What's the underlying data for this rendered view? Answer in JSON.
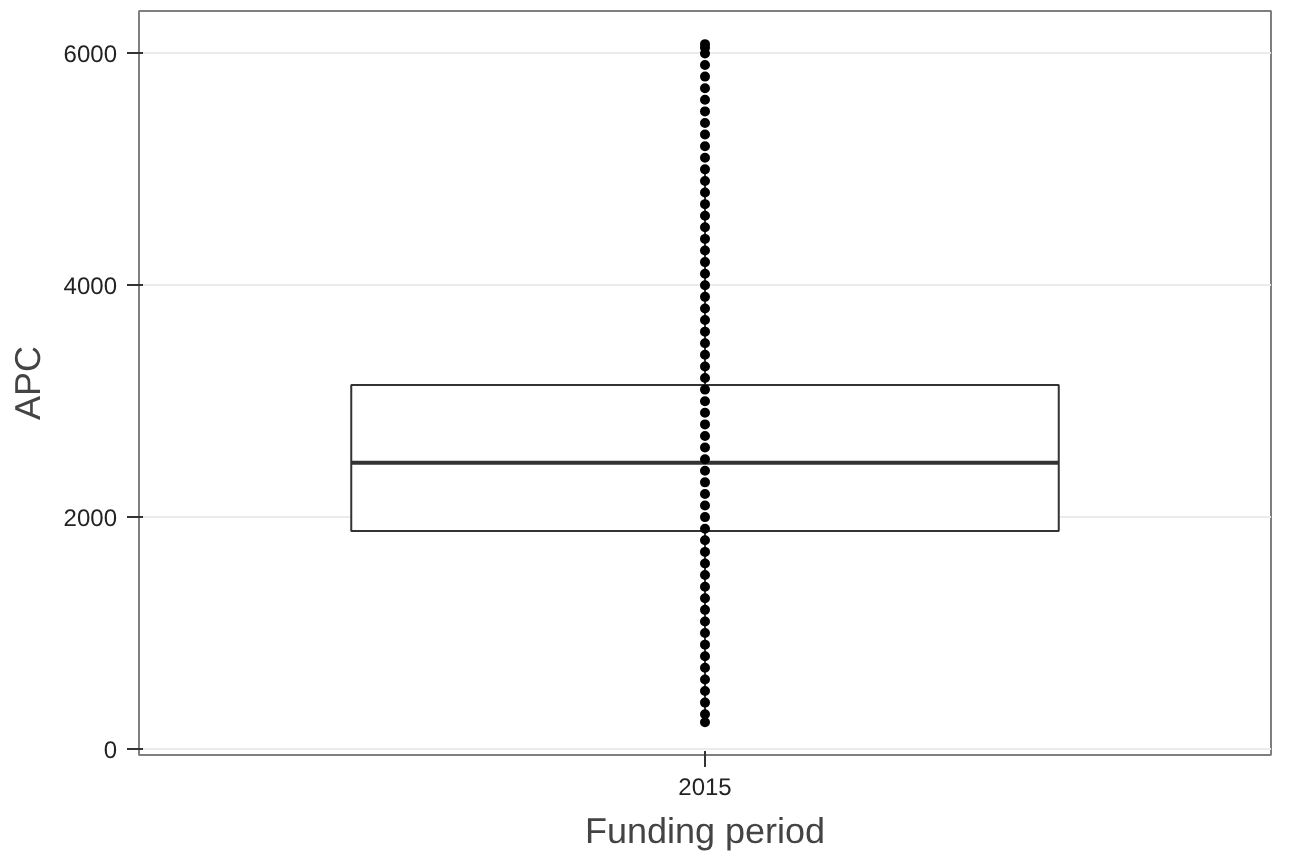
{
  "chart_data": {
    "type": "box",
    "xlabel": "Funding period",
    "ylabel": "APC",
    "categories": [
      "2015"
    ],
    "boxes": [
      {
        "low": 230,
        "q1": 1880,
        "median": 2470,
        "q3": 3140,
        "high": 5030,
        "outliers": [
          230,
          300,
          400,
          500,
          600,
          700,
          800,
          900,
          1000,
          1100,
          1200,
          1300,
          1400,
          1500,
          1600,
          1700,
          1800,
          1900,
          2000,
          2100,
          2200,
          2300,
          2400,
          2500,
          2600,
          2700,
          2800,
          2900,
          3000,
          3100,
          3200,
          3300,
          3400,
          3500,
          3600,
          3700,
          3800,
          3900,
          4000,
          4100,
          4200,
          4300,
          4400,
          4500,
          4600,
          4700,
          4800,
          4900,
          5000,
          5100,
          5200,
          5300,
          5400,
          5500,
          5600,
          5700,
          5800,
          5900,
          6000,
          6050,
          6080
        ]
      }
    ],
    "ylim": [
      -52,
      6366
    ],
    "yticks": [
      0,
      2000,
      4000,
      6000
    ],
    "grid": "y"
  }
}
